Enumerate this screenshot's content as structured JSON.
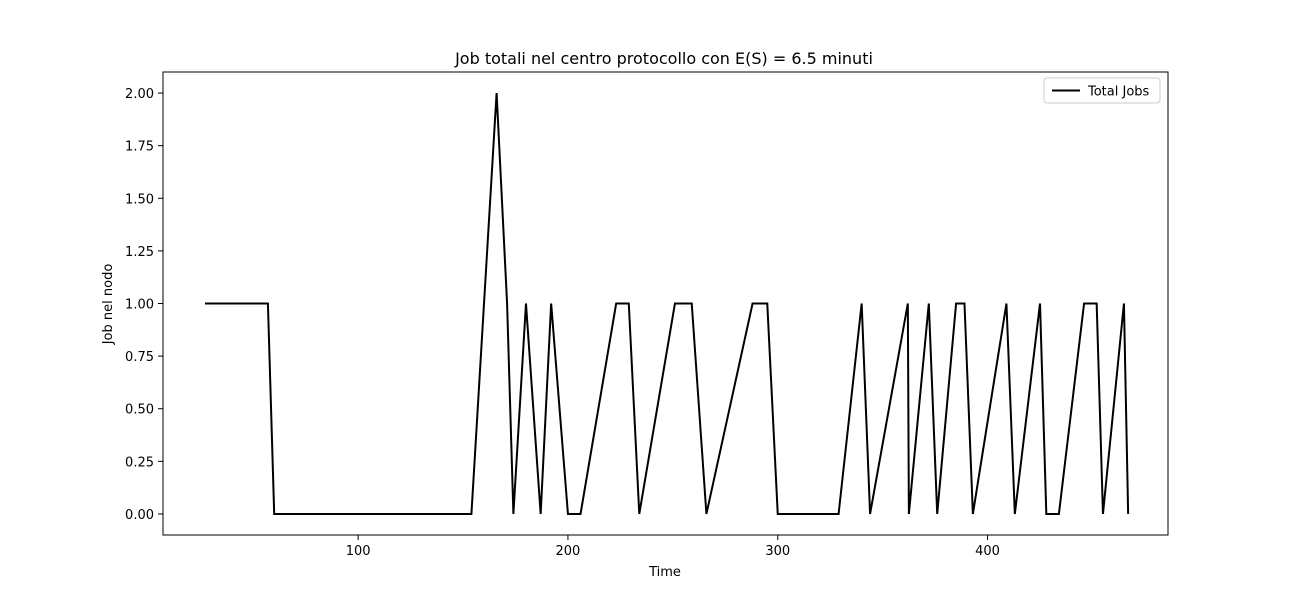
{
  "chart_data": {
    "type": "line",
    "title": "Job totali nel centro protocollo con E(S) = 6.5 minuti",
    "xlabel": "Time",
    "ylabel": "Job nel nodo",
    "xlim": [
      7,
      486
    ],
    "ylim": [
      -0.1,
      2.1
    ],
    "xticks": [
      100,
      200,
      300,
      400
    ],
    "yticks": [
      0.0,
      0.25,
      0.5,
      0.75,
      1.0,
      1.25,
      1.5,
      1.75,
      2.0
    ],
    "xtick_labels": [
      "100",
      "200",
      "300",
      "400"
    ],
    "ytick_labels": [
      "0.00",
      "0.25",
      "0.50",
      "0.75",
      "1.00",
      "1.25",
      "1.50",
      "1.75",
      "2.00"
    ],
    "grid": false,
    "legend_position": "top-right",
    "series": [
      {
        "name": "Total Jobs",
        "color": "#000000",
        "x": [
          27,
          57,
          60,
          154,
          160,
          166,
          171,
          174,
          180,
          187,
          192,
          200,
          206,
          223,
          229,
          234,
          251,
          259,
          266,
          288,
          295,
          300,
          329,
          340,
          344,
          362,
          362.5,
          372,
          376,
          385,
          389,
          393,
          409,
          413,
          425,
          428,
          434,
          446,
          452,
          455,
          465,
          467
        ],
        "y": [
          1,
          1,
          0,
          0,
          1,
          2,
          1,
          0,
          1,
          0,
          1,
          0,
          0,
          1,
          1,
          0,
          1,
          1,
          0,
          1,
          1,
          0,
          0,
          1,
          0,
          1,
          0,
          1,
          0,
          1,
          1,
          0,
          1,
          0,
          1,
          0,
          0,
          1,
          1,
          0,
          1,
          0
        ]
      }
    ]
  }
}
